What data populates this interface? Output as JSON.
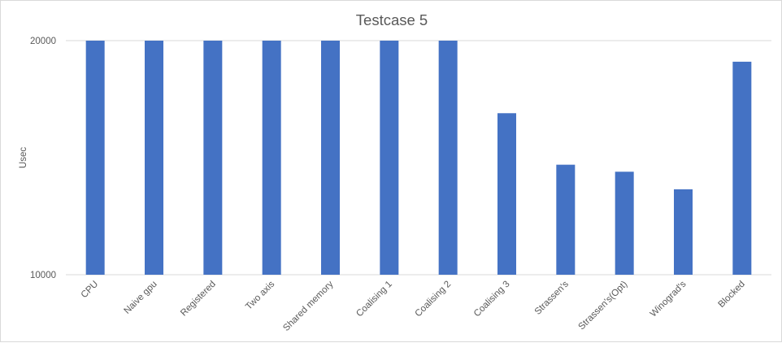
{
  "chart_data": {
    "type": "bar",
    "title": "Testcase 5",
    "xlabel": "",
    "ylabel": "Usec",
    "ylim": [
      10000,
      20000
    ],
    "yticks": [
      "10000",
      "20000"
    ],
    "grid": true,
    "categories": [
      "CPU",
      "Naive gpu",
      "Registered",
      "Two axis",
      "Shared memory",
      "Coalising 1",
      "Coalising 2",
      "Coalising 3",
      "Strassen's",
      "Strassen's(Opt)",
      "Winograd's",
      "Blocked"
    ],
    "values": [
      20000,
      20000,
      20000,
      20000,
      20000,
      20000,
      20000,
      16900,
      14700,
      14400,
      13650,
      19100
    ],
    "bar_color": "#4472c4",
    "gridline_color": "#d9d9d9"
  }
}
